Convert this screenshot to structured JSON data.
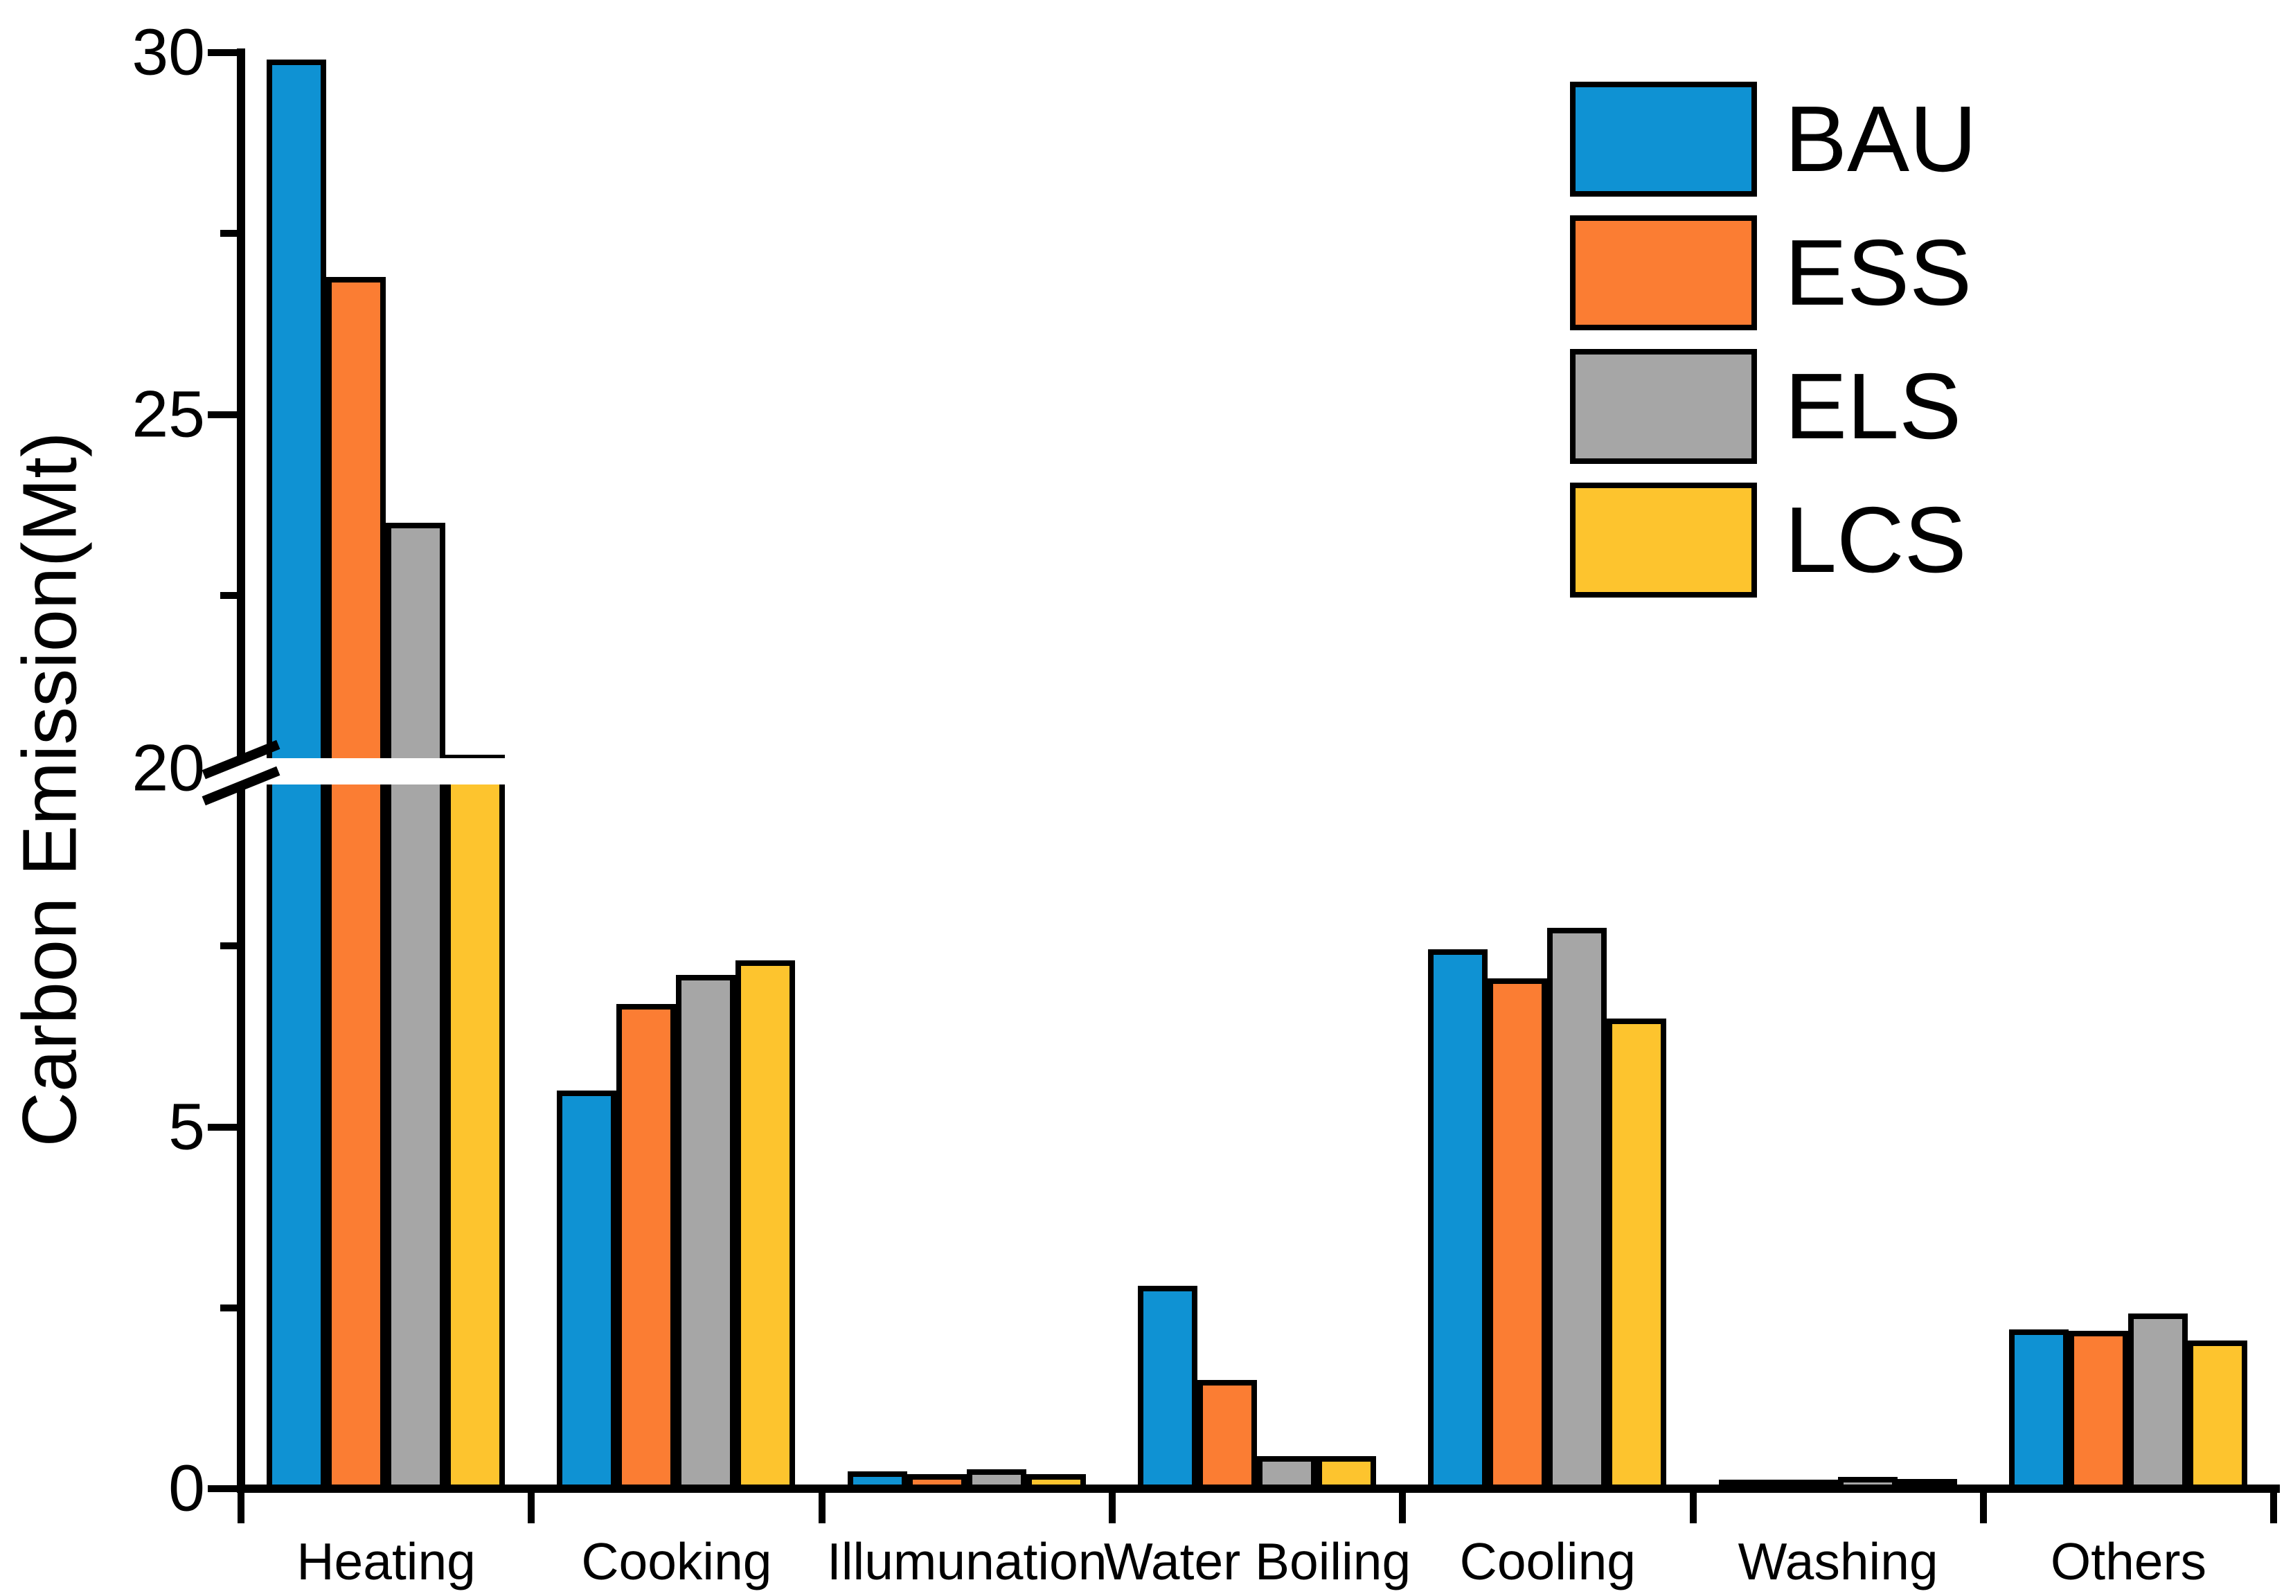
{
  "chart_data": {
    "type": "bar",
    "title": "",
    "ylabel": "Carbon Emission(Mt)",
    "xlabel": "",
    "grid": false,
    "legend_position": "top-right",
    "categories": [
      "Heating",
      "Cooking",
      "Illumunation",
      "Water Boiling",
      "Cooling",
      "Washing",
      "Others"
    ],
    "series": [
      {
        "name": "BAU",
        "color": "#0f92d3",
        "values": [
          29.9,
          5.5,
          0.24,
          2.8,
          7.45,
          0.12,
          2.2
        ]
      },
      {
        "name": "ESS",
        "color": "#fb7d33",
        "values": [
          26.9,
          6.7,
          0.2,
          1.5,
          7.05,
          0.12,
          2.18
        ]
      },
      {
        "name": "ELS",
        "color": "#a6a6a6",
        "values": [
          23.5,
          7.1,
          0.27,
          0.45,
          7.75,
          0.16,
          2.42
        ]
      },
      {
        "name": "LCS",
        "color": "#fdc42e",
        "values": [
          20.3,
          7.3,
          0.2,
          0.45,
          6.5,
          0.13,
          2.05
        ]
      }
    ],
    "y_axis": {
      "major_ticks": [
        {
          "label": "30",
          "value": 30
        },
        {
          "label": "25",
          "value": 25
        },
        {
          "label": "20",
          "value": 20,
          "at_break": true
        },
        {
          "label": "5",
          "value": 5
        },
        {
          "label": "0",
          "value": 0
        }
      ],
      "minor_tick_values": [
        27.5,
        22.5,
        7.5,
        2.5
      ],
      "axis_break": {
        "lower_max": 10,
        "upper_min": 20
      },
      "ylim_lower": [
        0,
        10
      ],
      "ylim_upper": [
        20,
        30
      ]
    },
    "bar_outline_color": "#000000",
    "axis_color": "#000000",
    "background_color": "#ffffff"
  }
}
